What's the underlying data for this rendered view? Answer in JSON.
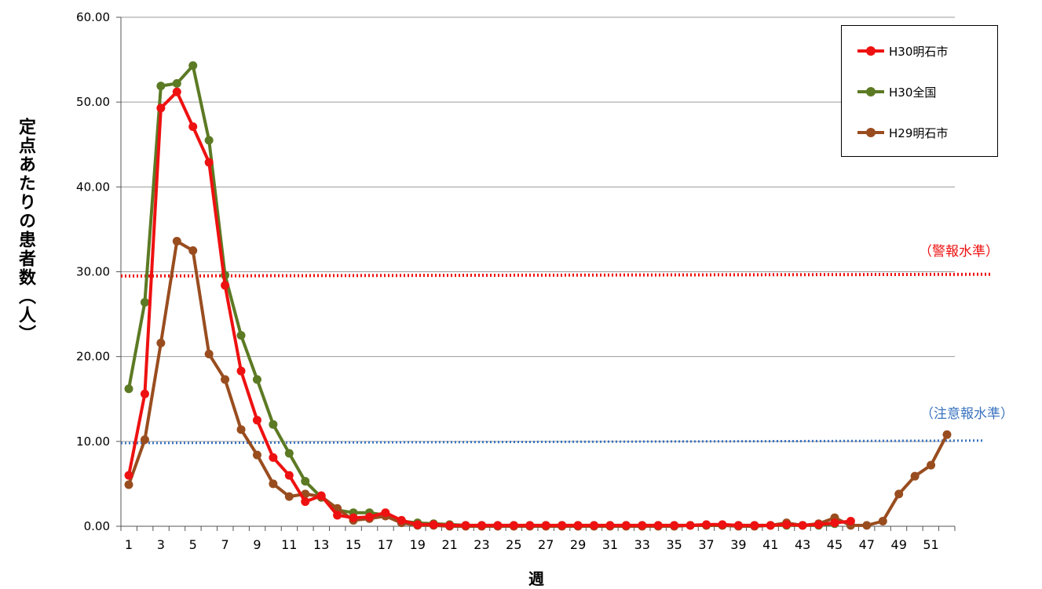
{
  "chart_data": {
    "type": "line",
    "title": "",
    "xlabel": "週",
    "ylabel": "定点あたりの患者数（人）",
    "ylim": [
      0,
      60
    ],
    "xlim": [
      1,
      52
    ],
    "yticks": [
      "0.00",
      "10.00",
      "20.00",
      "30.00",
      "40.00",
      "50.00",
      "60.00"
    ],
    "xticks": [
      "1",
      "3",
      "5",
      "7",
      "9",
      "11",
      "13",
      "15",
      "17",
      "19",
      "21",
      "23",
      "25",
      "27",
      "29",
      "31",
      "33",
      "35",
      "37",
      "39",
      "41",
      "43",
      "45",
      "47",
      "49",
      "51"
    ],
    "grid": true,
    "legend_position": "top-right",
    "series": [
      {
        "name": "H30明石市",
        "color": "#ee1111",
        "x": [
          1,
          2,
          3,
          4,
          5,
          6,
          7,
          8,
          9,
          10,
          11,
          12,
          13,
          14,
          15,
          16,
          17,
          18,
          19,
          20,
          21,
          22,
          23,
          24,
          25,
          26,
          27,
          28,
          29,
          30,
          31,
          32,
          33,
          34,
          35,
          36,
          37,
          38,
          39,
          40,
          41,
          42,
          43,
          44,
          45,
          46
        ],
        "values": [
          6.0,
          15.6,
          49.3,
          51.2,
          47.1,
          42.9,
          28.4,
          18.3,
          12.5,
          8.1,
          6.0,
          2.9,
          3.6,
          1.3,
          1.0,
          1.1,
          1.6,
          0.7,
          0.2,
          0.2,
          0.1,
          0.1,
          0.1,
          0.1,
          0.1,
          0.1,
          0.1,
          0.1,
          0.1,
          0.1,
          0.1,
          0.1,
          0.1,
          0.1,
          0.1,
          0.1,
          0.2,
          0.2,
          0.1,
          0.1,
          0.1,
          0.2,
          0.1,
          0.2,
          0.4,
          0.6
        ]
      },
      {
        "name": "H30全国",
        "color": "#5c7a24",
        "x": [
          1,
          2,
          3,
          4,
          5,
          6,
          7,
          8,
          9,
          10,
          11,
          12,
          13,
          14,
          15,
          16,
          17,
          18,
          19,
          20,
          21,
          22,
          23,
          24,
          25,
          26,
          27,
          28,
          29,
          30,
          31,
          32,
          33,
          34,
          35,
          36,
          37,
          38,
          39,
          40,
          41,
          42,
          43,
          44,
          45
        ],
        "values": [
          16.2,
          26.4,
          51.9,
          52.2,
          54.3,
          45.5,
          29.6,
          22.5,
          17.3,
          12.0,
          8.6,
          5.3,
          3.4,
          1.9,
          1.6,
          1.6,
          1.3,
          0.6,
          0.4,
          0.3,
          0.2,
          0.1,
          0.1,
          0.1,
          0.1,
          0.1,
          0.1,
          0.1,
          0.1,
          0.1,
          0.1,
          0.1,
          0.1,
          0.1,
          0.1,
          0.1,
          0.1,
          0.1,
          0.1,
          0.1,
          0.1,
          0.1,
          0.1,
          0.1,
          0.3
        ]
      },
      {
        "name": "H29明石市",
        "color": "#994d1f",
        "x": [
          1,
          2,
          3,
          4,
          5,
          6,
          7,
          8,
          9,
          10,
          11,
          12,
          13,
          14,
          15,
          16,
          17,
          18,
          19,
          20,
          21,
          22,
          23,
          24,
          25,
          26,
          27,
          28,
          29,
          30,
          31,
          32,
          33,
          34,
          35,
          36,
          37,
          38,
          39,
          40,
          41,
          42,
          43,
          44,
          45,
          46,
          47,
          48,
          49,
          50,
          51,
          52
        ],
        "values": [
          4.9,
          10.2,
          21.6,
          33.6,
          32.5,
          20.3,
          17.3,
          11.4,
          8.4,
          5.0,
          3.5,
          3.8,
          3.5,
          2.1,
          0.7,
          0.9,
          1.2,
          0.4,
          0.1,
          0.1,
          0.0,
          0.0,
          0.0,
          0.0,
          0.0,
          0.0,
          0.0,
          0.0,
          0.0,
          0.0,
          0.0,
          0.0,
          0.0,
          0.0,
          0.0,
          0.1,
          0.1,
          0.1,
          0.0,
          0.0,
          0.1,
          0.4,
          0.1,
          0.3,
          1.0,
          0.1,
          0.1,
          0.6,
          3.8,
          5.9,
          7.2,
          10.8
        ]
      }
    ],
    "reference_lines": [
      {
        "label": "（警報水準）",
        "y": 29.5,
        "color": "#ee1111"
      },
      {
        "label": "（注意報水準）",
        "y": 9.8,
        "color": "#3a73c0"
      }
    ]
  }
}
